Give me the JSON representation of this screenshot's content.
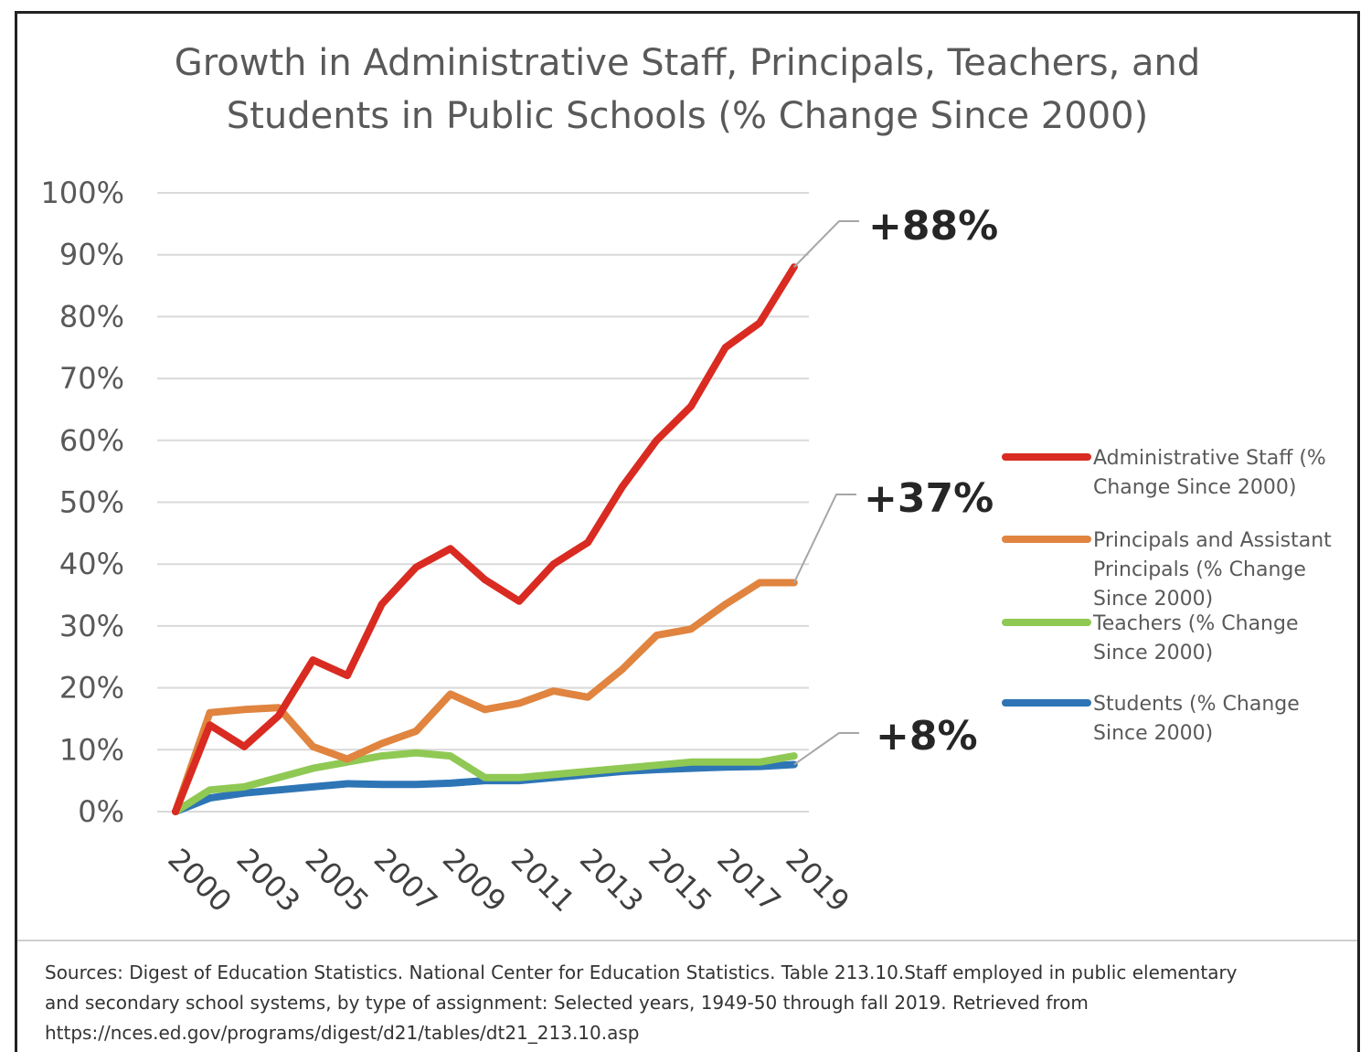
{
  "chart_data": {
    "type": "line",
    "title": [
      "Growth in Administrative Staff, Principals, Teachers, and",
      "Students in Public Schools (% Change Since 2000)"
    ],
    "x_tick_labels": [
      "2000",
      "2003",
      "2005",
      "2007",
      "2009",
      "2011",
      "2013",
      "2015",
      "2017",
      "2019"
    ],
    "y_tick_labels": [
      "0%",
      "10%",
      "20%",
      "30%",
      "40%",
      "50%",
      "60%",
      "70%",
      "80%",
      "90%",
      "100%"
    ],
    "ylim": [
      0,
      100
    ],
    "grid": true,
    "legend_position": "right",
    "x": [
      2000,
      2001,
      2002,
      2003,
      2004,
      2005,
      2006,
      2007,
      2008,
      2009,
      2010,
      2011,
      2012,
      2013,
      2014,
      2015,
      2016,
      2017,
      2018
    ],
    "series": [
      {
        "name": [
          "Administrative Staff (%",
          "Change Since 2000)"
        ],
        "color": "#d92b21",
        "values": [
          0,
          14,
          10.5,
          15.5,
          24.5,
          22,
          33.5,
          39.5,
          42.5,
          37.5,
          34,
          40,
          43.5,
          52.5,
          60,
          65.5,
          75,
          79,
          88
        ]
      },
      {
        "name": [
          "Principals and Assistant",
          "Principals (% Change",
          "Since 2000)"
        ],
        "color": "#e0843f",
        "values": [
          0,
          16,
          16.5,
          16.8,
          10.5,
          8.5,
          11,
          13,
          19,
          16.5,
          17.5,
          19.5,
          18.5,
          23,
          28.5,
          29.5,
          33.5,
          37,
          37
        ]
      },
      {
        "name": [
          "Teachers (% Change",
          "Since 2000)"
        ],
        "color": "#8fc954",
        "values": [
          0,
          3.5,
          4,
          5.5,
          7,
          8,
          9,
          9.5,
          9,
          5.5,
          5.5,
          6,
          6.5,
          7,
          7.5,
          8,
          8,
          8,
          9
        ]
      },
      {
        "name": [
          "Students (% Change",
          "Since 2000)"
        ],
        "color": "#2e75b6",
        "values": [
          0,
          2.2,
          3,
          3.5,
          4,
          4.5,
          4.4,
          4.4,
          4.6,
          5,
          5,
          5.5,
          6,
          6.5,
          6.8,
          7,
          7.2,
          7.3,
          7.6
        ]
      }
    ],
    "annotations": [
      {
        "text": "+88%",
        "series_index": 0
      },
      {
        "text": "+37%",
        "series_index": 1
      },
      {
        "text": "+8%",
        "series_index": 3
      }
    ]
  },
  "source_lines": [
    "Sources: Digest of Education Statistics. National Center for Education Statistics. Table 213.10.Staff employed in public elementary",
    "and secondary school systems, by type of assignment: Selected years, 1949-50 through fall 2019. Retrieved from",
    "https://nces.ed.gov/programs/digest/d21/tables/dt21_213.10.asp"
  ]
}
